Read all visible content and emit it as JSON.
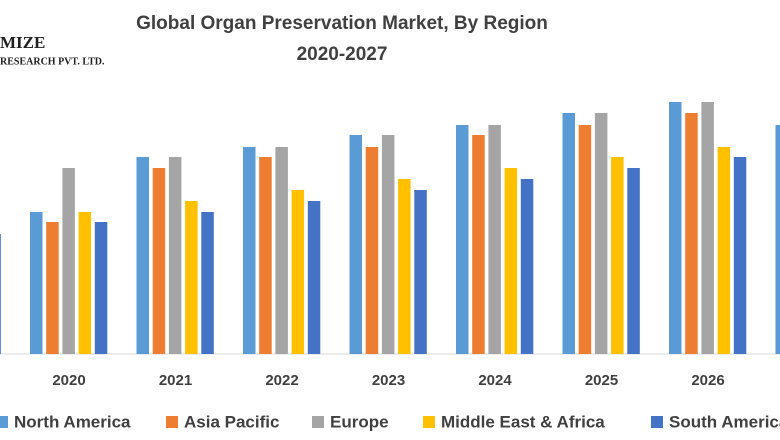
{
  "logo": {
    "line1": "MIZE",
    "line2": "RESEARCH PVT. LTD."
  },
  "chart_data": {
    "type": "bar",
    "title": "Global Organ Preservation Market, By Region",
    "subtitle": "2020-2027",
    "categories": [
      null,
      "2020",
      "2021",
      "2022",
      "2023",
      "2024",
      "2025",
      "2026",
      null
    ],
    "ylim": [
      0,
      260
    ],
    "legend": "bottom",
    "series": [
      {
        "name": "North America",
        "color": "#5b9bd5",
        "values": [
          null,
          142,
          197,
          207,
          219,
          229,
          241,
          252,
          229
        ]
      },
      {
        "name": "Asia Pacific",
        "color": "#ed7d31",
        "values": [
          null,
          132,
          186,
          197,
          207,
          219,
          229,
          241,
          null
        ]
      },
      {
        "name": "Europe",
        "color": "#a5a5a5",
        "values": [
          null,
          186,
          197,
          207,
          219,
          229,
          241,
          252,
          null
        ]
      },
      {
        "name": "Middle East & Africa",
        "color": "#ffc000",
        "values": [
          null,
          142,
          153,
          164,
          175,
          186,
          197,
          207,
          null
        ]
      },
      {
        "name": "South America",
        "color": "#4472c4",
        "values": [
          120,
          132,
          142,
          153,
          164,
          175,
          186,
          197,
          null
        ]
      }
    ]
  }
}
